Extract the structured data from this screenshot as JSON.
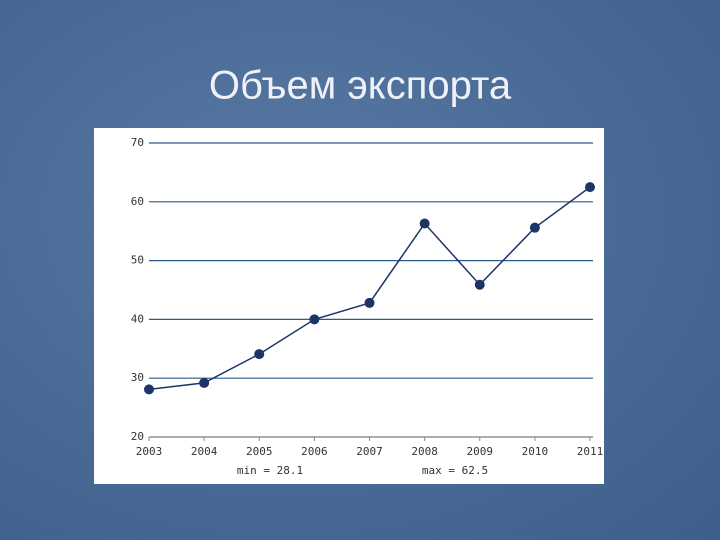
{
  "chart_data": {
    "type": "line",
    "title": "Объем экспорта",
    "categories": [
      "2003",
      "2004",
      "2005",
      "2006",
      "2007",
      "2008",
      "2009",
      "2010",
      "2011"
    ],
    "series": [
      {
        "color": "#1c3566",
        "values": [
          28.1,
          29.2,
          34.1,
          40,
          42.8,
          56.3,
          45.9,
          55.6,
          62.5
        ]
      }
    ],
    "ylim": [
      20,
      70
    ],
    "yticks": [
      20,
      30,
      40,
      50,
      60,
      70
    ],
    "grid": true,
    "annotations": [
      "min = 28.1",
      "max = 62.5"
    ]
  }
}
